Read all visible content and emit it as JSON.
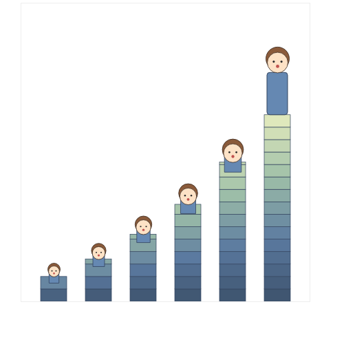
{
  "chart_data": {
    "type": "bar",
    "categories": [
      null,
      null,
      null,
      null,
      null,
      null
    ],
    "values": [
      2,
      3.4,
      5.4,
      7.8,
      11.2,
      15
    ],
    "color": "#5b7aa0",
    "ylim": [
      0,
      24
    ],
    "tick_labels": false
  }
}
